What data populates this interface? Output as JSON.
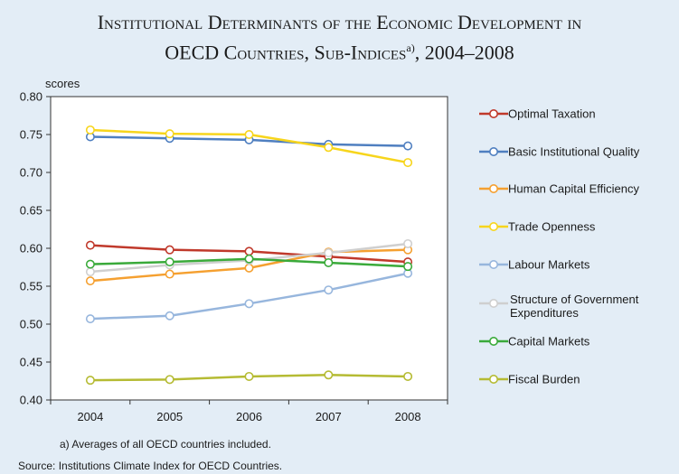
{
  "title_line1": "Institutional Determinants of the Economic Development in",
  "title_line2": "OECD Countries, Sub-Indices",
  "title_sup": "a)",
  "title_years": ", 2004–2008",
  "footnote": "a) Averages of all OECD countries included.",
  "source": "Source: Institutions Climate Index for OECD Countries.",
  "chart_data": {
    "type": "line",
    "ylabel": "scores",
    "xlabel": "",
    "x": [
      "2004",
      "2005",
      "2006",
      "2007",
      "2008"
    ],
    "ylim": [
      0.4,
      0.8
    ],
    "yticks": [
      "0.80",
      "0.75",
      "0.70",
      "0.65",
      "0.60",
      "0.55",
      "0.50",
      "0.45",
      "0.40"
    ],
    "grid": false,
    "legend_position": "right",
    "series": [
      {
        "name": "Optimal Taxation",
        "color": "#c0392b",
        "values": [
          0.604,
          0.598,
          0.596,
          0.589,
          0.582
        ]
      },
      {
        "name": "Basic Institutional Quality",
        "color": "#4f7fc0",
        "values": [
          0.747,
          0.745,
          0.743,
          0.737,
          0.735
        ]
      },
      {
        "name": "Human Capital Efficiency",
        "color": "#f5a030",
        "values": [
          0.557,
          0.566,
          0.574,
          0.595,
          0.598
        ]
      },
      {
        "name": "Trade Openness",
        "color": "#f7d51c",
        "values": [
          0.756,
          0.751,
          0.75,
          0.733,
          0.713
        ]
      },
      {
        "name": "Labour Markets",
        "color": "#97b6dd",
        "values": [
          0.507,
          0.511,
          0.527,
          0.545,
          0.567
        ]
      },
      {
        "name": "Structure of Government Expenditures",
        "color": "#cfcfcf",
        "values": [
          0.569,
          0.578,
          0.584,
          0.594,
          0.606
        ]
      },
      {
        "name": "Capital Markets",
        "color": "#3aaa3a",
        "values": [
          0.579,
          0.582,
          0.586,
          0.581,
          0.576
        ]
      },
      {
        "name": "Fiscal Burden",
        "color": "#b5bb33",
        "values": [
          0.426,
          0.427,
          0.431,
          0.433,
          0.431
        ]
      }
    ]
  }
}
